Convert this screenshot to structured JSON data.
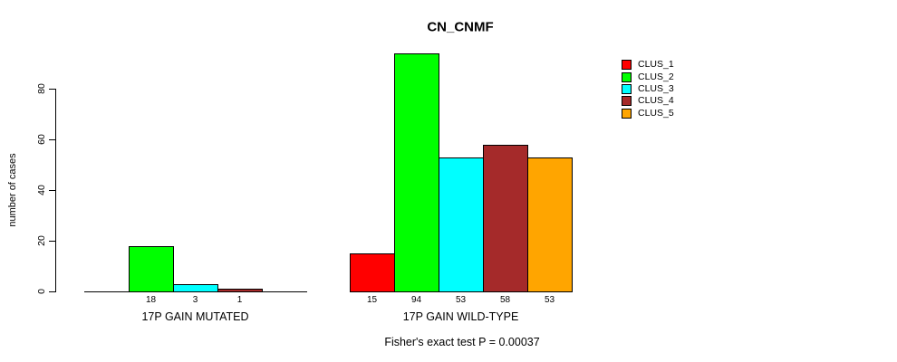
{
  "chart_data": {
    "type": "bar",
    "title": "CN_CNMF",
    "ylabel": "number of cases",
    "xlabel": "",
    "yticks": [
      0,
      20,
      40,
      60,
      80
    ],
    "ylim": [
      0,
      80
    ],
    "grid": false,
    "legend": {
      "position": "right",
      "entries": [
        {
          "label": "CLUS_1",
          "color": "#FF0000"
        },
        {
          "label": "CLUS_2",
          "color": "#00FF00"
        },
        {
          "label": "CLUS_3",
          "color": "#00FFFF"
        },
        {
          "label": "CLUS_4",
          "color": "#A52A2A"
        },
        {
          "label": "CLUS_5",
          "color": "#FFA500"
        }
      ]
    },
    "groups": [
      {
        "label": "17P GAIN MUTATED",
        "values": [
          0,
          18,
          3,
          1,
          0
        ],
        "bar_labels": [
          "",
          "18",
          "3",
          "1",
          ""
        ]
      },
      {
        "label": "17P GAIN WILD-TYPE",
        "values": [
          15,
          94,
          53,
          58,
          53
        ],
        "bar_labels": [
          "15",
          "94",
          "53",
          "58",
          "53"
        ]
      }
    ],
    "footnote": "Fisher's exact test P = 0.00037",
    "axis_color": "#000000",
    "background_color": "#FFFFFF"
  }
}
